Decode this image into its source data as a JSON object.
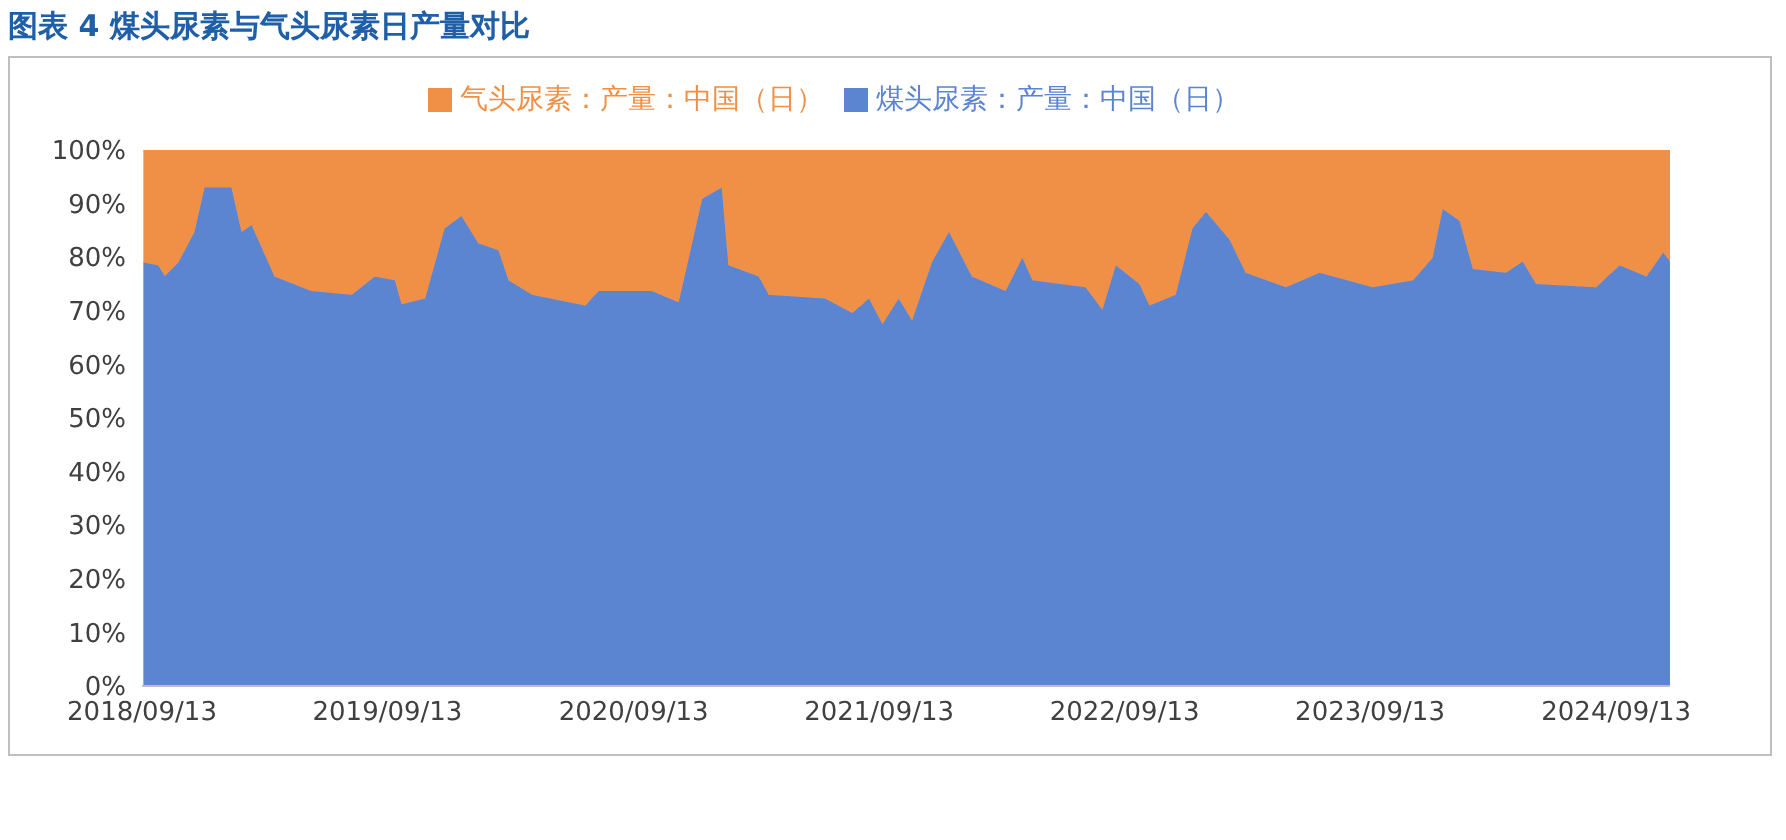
{
  "chart_data": {
    "type": "area",
    "title": "图表 4 煤头尿素与气头尿素日产量对比",
    "stacked": true,
    "legend": "top",
    "grid": false,
    "x": [
      "2018-09-15",
      "2018-10-07",
      "2018-10-17",
      "2018-11-06",
      "2018-11-30",
      "2018-12-15",
      "2019-01-24",
      "2019-02-08",
      "2019-02-23",
      "2019-03-29",
      "2019-05-23",
      "2019-07-22",
      "2019-08-25",
      "2019-09-24",
      "2019-10-04",
      "2019-11-08",
      "2019-12-07",
      "2020-01-01",
      "2020-01-26",
      "2020-02-25",
      "2020-03-11",
      "2020-04-15",
      "2020-07-03",
      "2020-07-23",
      "2020-10-10",
      "2020-11-19",
      "2020-12-24",
      "2021-01-22",
      "2021-02-01",
      "2021-03-18",
      "2021-04-02",
      "2021-06-25",
      "2021-08-04",
      "2021-08-29",
      "2021-09-18",
      "2021-10-12",
      "2021-11-01",
      "2021-12-01",
      "2021-12-26",
      "2022-01-29",
      "2022-03-20",
      "2022-04-14",
      "2022-04-29",
      "2022-07-17",
      "2022-08-11",
      "2022-08-31",
      "2022-10-05",
      "2022-10-20",
      "2022-11-28",
      "2022-12-23",
      "2023-01-12",
      "2023-02-16",
      "2023-03-12",
      "2023-05-11",
      "2023-06-30",
      "2023-09-17",
      "2023-11-16",
      "2023-12-15",
      "2023-12-30",
      "2024-01-24",
      "2024-02-13",
      "2024-04-02",
      "2024-04-27",
      "2024-05-17",
      "2024-08-14",
      "2024-09-18",
      "2024-10-28",
      "2024-11-22",
      "2024-12-02"
    ],
    "series": [
      {
        "name": "煤头尿素：产量：中国（日）",
        "color": "#5b84d1",
        "values": [
          79,
          78.5,
          76.5,
          79,
          84.7,
          93,
          93,
          84.7,
          86,
          76.4,
          73.7,
          73,
          76.4,
          75.7,
          71.2,
          72.3,
          85.4,
          87.7,
          82.6,
          81.3,
          75.7,
          73,
          71,
          73.7,
          73.7,
          71.6,
          90.9,
          93,
          78.5,
          76.4,
          73,
          72.3,
          69.6,
          72.3,
          67.5,
          72.3,
          68.2,
          79.2,
          84.7,
          76.4,
          73.7,
          79.9,
          75.7,
          74.4,
          70.2,
          78.5,
          75,
          71,
          73,
          85.4,
          88.5,
          83.3,
          77.1,
          74.4,
          77.1,
          74.4,
          75.7,
          79.9,
          89,
          86.8,
          77.8,
          77.1,
          79.2,
          75,
          74.4,
          78.5,
          76.4,
          80.9,
          79.2
        ]
      },
      {
        "name": "气头尿素：产量：中国（日）",
        "color": "#f09046",
        "values": [
          21,
          21.5,
          23.5,
          21,
          15.3,
          7,
          7,
          15.3,
          14,
          23.6,
          26.3,
          27,
          23.6,
          24.3,
          28.8,
          27.7,
          14.6,
          12.3,
          17.4,
          18.7,
          24.3,
          27,
          29,
          26.3,
          26.3,
          28.4,
          9.1,
          7,
          21.5,
          23.6,
          27,
          27.7,
          30.4,
          27.7,
          32.5,
          27.7,
          31.8,
          20.8,
          15.3,
          23.6,
          26.3,
          20.1,
          24.3,
          25.6,
          29.8,
          21.5,
          25,
          29,
          27,
          14.6,
          11.5,
          16.7,
          22.9,
          25.6,
          22.9,
          25.6,
          24.3,
          20.1,
          11,
          13.2,
          22.2,
          22.9,
          20.8,
          25,
          25.6,
          21.5,
          23.6,
          19.1,
          20.8
        ]
      }
    ],
    "xlim": [
      "2018-09-13",
      "2024-12-02"
    ],
    "xticks": [
      {
        "value": "2018-09-13",
        "label": "2018/09/13"
      },
      {
        "value": "2019-09-13",
        "label": "2019/09/13"
      },
      {
        "value": "2020-09-13",
        "label": "2020/09/13"
      },
      {
        "value": "2021-09-13",
        "label": "2021/09/13"
      },
      {
        "value": "2022-09-13",
        "label": "2022/09/13"
      },
      {
        "value": "2023-09-13",
        "label": "2023/09/13"
      },
      {
        "value": "2024-09-13",
        "label": "2024/09/13"
      }
    ],
    "ylim": [
      0,
      100
    ],
    "yticks": [
      {
        "value": 0,
        "label": "0%"
      },
      {
        "value": 10,
        "label": "10%"
      },
      {
        "value": 20,
        "label": "20%"
      },
      {
        "value": 30,
        "label": "30%"
      },
      {
        "value": 40,
        "label": "40%"
      },
      {
        "value": 50,
        "label": "50%"
      },
      {
        "value": 60,
        "label": "60%"
      },
      {
        "value": 70,
        "label": "70%"
      },
      {
        "value": 80,
        "label": "80%"
      },
      {
        "value": 90,
        "label": "90%"
      },
      {
        "value": 100,
        "label": "100%"
      }
    ]
  }
}
